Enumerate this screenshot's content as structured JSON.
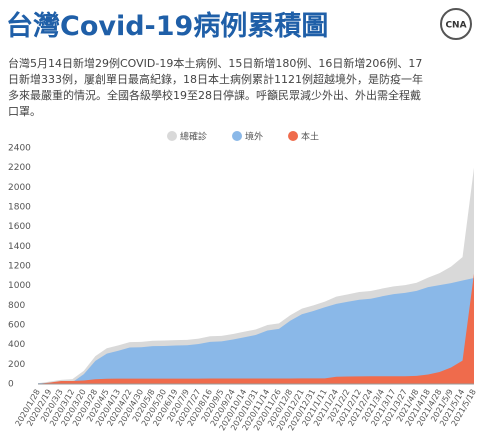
{
  "logo": "CNA",
  "chart_data": {
    "type": "area",
    "title": "台灣Covid-19病例累積圖",
    "subtitle": "台灣5月14日新增29例COVID-19本土病例、15日新增180例、16日新增206例、17日新增333例，屢創單日最高紀錄，18日本土病例累計1121例超越境外，是防疫一年多來最嚴重的情況。全國各級學校19至28日停課。呼籲民眾減少外出、外出需全程戴口罩。",
    "categories": [
      "2020/1/28",
      "2020/2/19",
      "2020/3/3",
      "2020/3/12",
      "2020/3/20",
      "2020/3/28",
      "2020/4/5",
      "2020/4/13",
      "2020/4/22",
      "2020/4/30",
      "2020/5/8",
      "2020/5/30",
      "2020/6/19",
      "2020/7/9",
      "2020/7/27",
      "2020/8/16",
      "2020/9/5",
      "2020/9/24",
      "2020/10/14",
      "2020/10/31",
      "2020/11/14",
      "2020/11/26",
      "2020/12/8",
      "2020/12/21",
      "2020/12/31",
      "2021/1/11",
      "2021/1/24",
      "2021/2/2",
      "2021/2/12",
      "2021/2/24",
      "2021/3/4",
      "2021/3/17",
      "2021/3/27",
      "2021/4/8",
      "2021/4/18",
      "2021/4/28",
      "2021/5/9",
      "2021/5/14",
      "2021/5/18"
    ],
    "series": [
      {
        "name": "總確診",
        "color": "#d9d9d9",
        "values": [
          8,
          24,
          42,
          49,
          135,
          283,
          363,
          393,
          426,
          429,
          440,
          442,
          446,
          449,
          462,
          485,
          490,
          509,
          532,
          555,
          600,
          617,
          701,
          766,
          799,
          838,
          889,
          912,
          935,
          946,
          971,
          993,
          1006,
          1030,
          1082,
          1128,
          1194,
          1290,
          2199
        ]
      },
      {
        "name": "境外",
        "color": "#8ab8e8",
        "values": [
          7,
          10,
          12,
          18,
          100,
          235,
          309,
          338,
          371,
          374,
          385,
          387,
          391,
          394,
          407,
          429,
          434,
          453,
          476,
          499,
          544,
          561,
          645,
          709,
          742,
          781,
          815,
          836,
          857,
          867,
          892,
          914,
          927,
          947,
          985,
          1006,
          1026,
          1052,
          1078
        ]
      },
      {
        "name": "本土",
        "color": "#ef6b4c",
        "values": [
          1,
          14,
          30,
          31,
          35,
          48,
          54,
          55,
          55,
          55,
          55,
          55,
          55,
          55,
          55,
          56,
          56,
          56,
          56,
          56,
          56,
          56,
          56,
          57,
          57,
          57,
          74,
          76,
          78,
          79,
          79,
          79,
          79,
          83,
          97,
          122,
          168,
          238,
          1121
        ]
      }
    ],
    "ylim": [
      0,
      2400
    ],
    "yticks": [
      0,
      200,
      400,
      600,
      800,
      1000,
      1200,
      1400,
      1600,
      1800,
      2000,
      2200,
      2400
    ],
    "grid": false,
    "legend": "top"
  }
}
